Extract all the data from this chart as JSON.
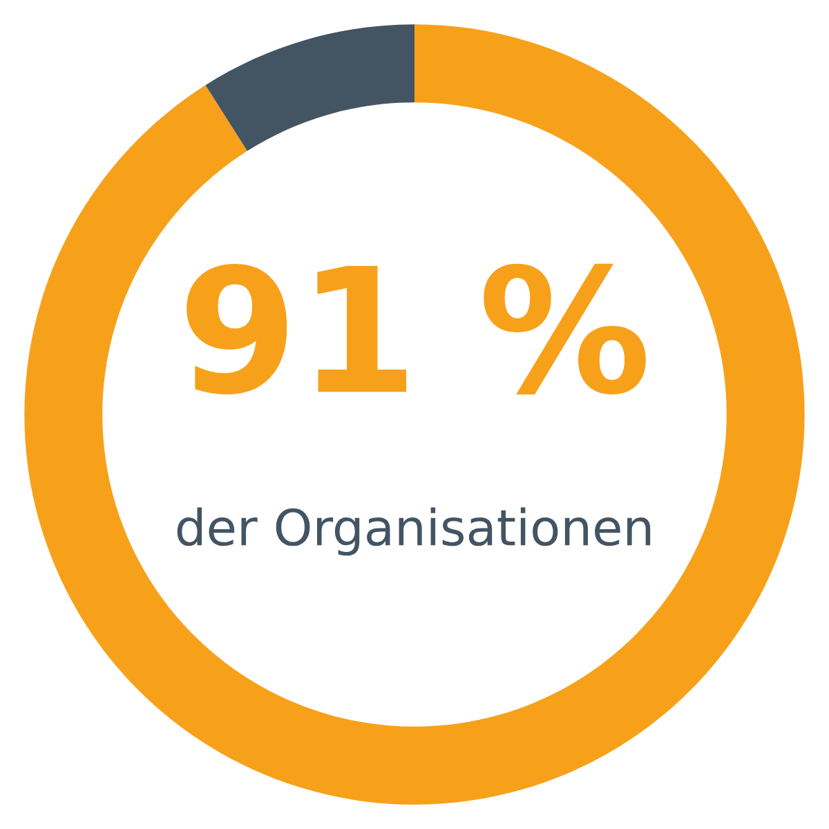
{
  "chart_data": {
    "type": "donut",
    "categories": [
      null,
      null
    ],
    "values": [
      91,
      9
    ],
    "colors": [
      "#f7a11b",
      "#435463"
    ],
    "value_labels": [
      "91 %",
      null
    ],
    "annotations": [
      "der Organisationen"
    ]
  }
}
